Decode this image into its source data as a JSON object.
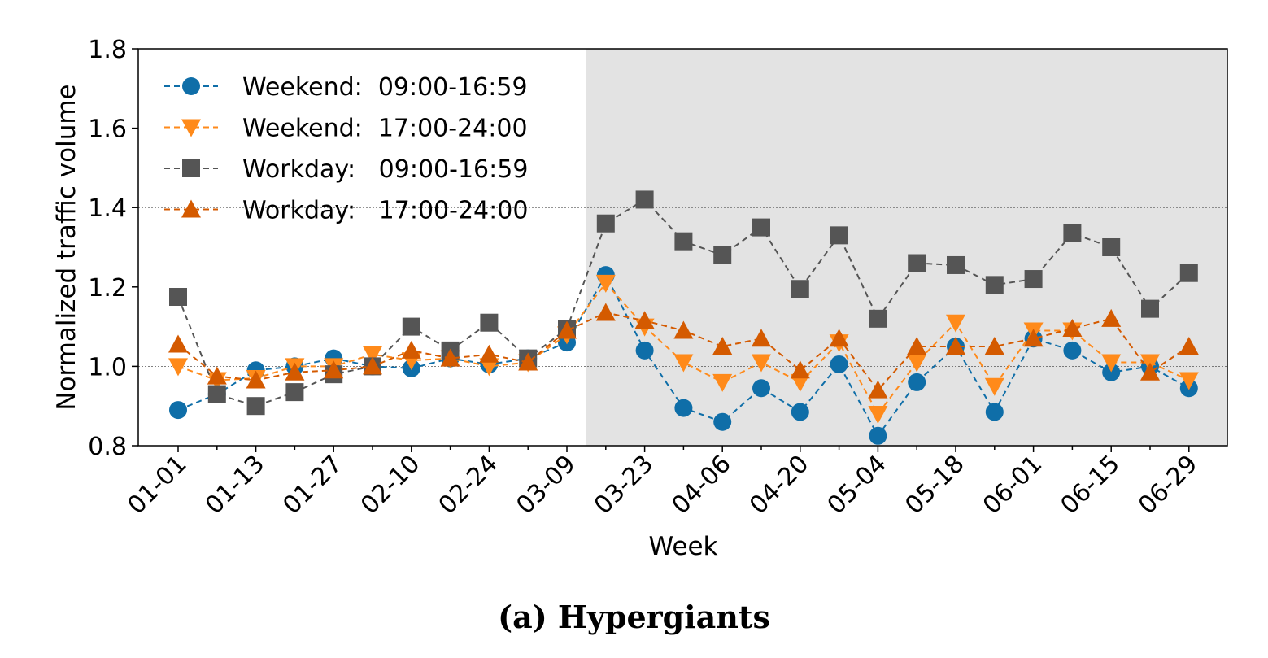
{
  "caption": "(a) Hypergiants",
  "colors": {
    "weekend_day": "#0f6ea8",
    "weekend_night": "#ff8a1a",
    "workday_day": "#555555",
    "workday_night": "#d45a00",
    "shade": "#e3e3e3"
  },
  "chart_data": {
    "type": "line",
    "xlabel": "Week",
    "ylabel": "Normalized traffic volume",
    "ylim": [
      0.8,
      1.8
    ],
    "yticks": [
      "0.8",
      "1.0",
      "1.2",
      "1.4",
      "1.6",
      "1.8"
    ],
    "x": [
      "01-01",
      "01-06",
      "01-13",
      "01-20",
      "01-27",
      "02-03",
      "02-10",
      "02-17",
      "02-24",
      "03-02",
      "03-09",
      "03-16",
      "03-23",
      "03-30",
      "04-06",
      "04-13",
      "04-20",
      "04-27",
      "05-04",
      "05-11",
      "05-18",
      "05-25",
      "06-01",
      "06-08",
      "06-15",
      "06-22",
      "06-29"
    ],
    "xtick_labels": [
      "01-01",
      "01-13",
      "01-27",
      "02-10",
      "02-24",
      "03-09",
      "03-23",
      "04-06",
      "04-20",
      "05-04",
      "05-18",
      "06-01",
      "06-15",
      "06-29"
    ],
    "reference_lines": [
      1.0,
      1.4
    ],
    "shaded_from": "03-16",
    "legend_position": "upper-left",
    "series": [
      {
        "name": "Weekend:  09:00-16:59",
        "marker": "circle",
        "color": "#0f6ea8",
        "values": [
          0.89,
          0.93,
          0.99,
          1.0,
          1.02,
          1.0,
          0.995,
          1.02,
          1.005,
          1.02,
          1.06,
          1.23,
          1.04,
          0.895,
          0.86,
          0.945,
          0.885,
          1.005,
          0.825,
          0.96,
          1.05,
          0.885,
          1.07,
          1.04,
          0.985,
          1.0,
          0.945
        ]
      },
      {
        "name": "Weekend:  17:00-24:00",
        "marker": "triangle-down",
        "color": "#ff8a1a",
        "values": [
          1.0,
          0.965,
          0.97,
          1.0,
          1.0,
          1.03,
          1.015,
          1.02,
          1.0,
          1.01,
          1.08,
          1.21,
          1.1,
          1.01,
          0.96,
          1.01,
          0.96,
          1.06,
          0.88,
          1.01,
          1.11,
          0.95,
          1.09,
          1.09,
          1.01,
          1.01,
          0.965
        ]
      },
      {
        "name": "Workday:   09:00-16:59",
        "marker": "square",
        "color": "#555555",
        "values": [
          1.175,
          0.93,
          0.9,
          0.935,
          0.98,
          1.0,
          1.1,
          1.04,
          1.11,
          1.02,
          1.095,
          1.36,
          1.42,
          1.315,
          1.28,
          1.35,
          1.195,
          1.33,
          1.12,
          1.26,
          1.255,
          1.205,
          1.22,
          1.335,
          1.3,
          1.145,
          1.235
        ]
      },
      {
        "name": "Workday:   17:00-24:00",
        "marker": "triangle-up",
        "color": "#d45a00",
        "values": [
          1.055,
          0.975,
          0.965,
          0.985,
          0.99,
          1.0,
          1.04,
          1.02,
          1.03,
          1.01,
          1.09,
          1.135,
          1.115,
          1.09,
          1.05,
          1.07,
          0.99,
          1.07,
          0.94,
          1.05,
          1.05,
          1.05,
          1.07,
          1.095,
          1.12,
          0.985,
          1.05
        ]
      }
    ]
  }
}
